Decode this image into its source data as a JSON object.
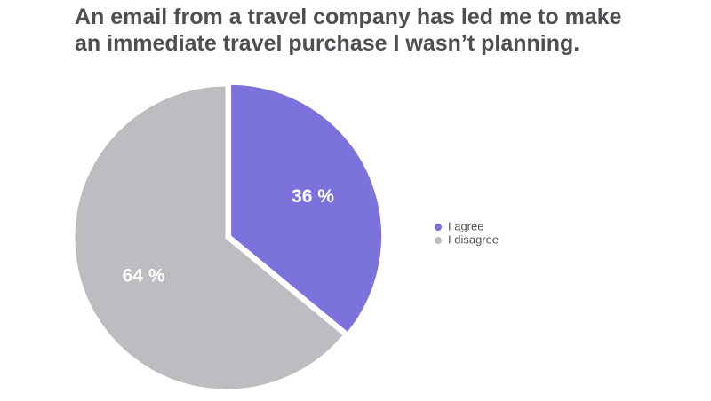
{
  "chart_data": {
    "type": "pie",
    "title": "An email from a travel company has led me to make an immediate travel purchase I wasn’t planning.",
    "categories": [
      "I agree",
      "I disagree"
    ],
    "values": [
      36,
      64
    ],
    "value_labels": [
      "36 %",
      "64 %"
    ],
    "colors": [
      "#7b72dc",
      "#bbbdc1"
    ],
    "legend": "right"
  }
}
